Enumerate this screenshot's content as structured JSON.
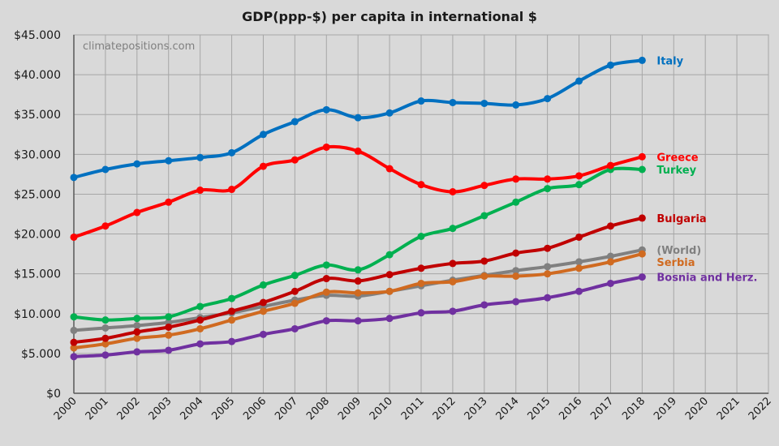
{
  "chart_data": {
    "type": "line",
    "title": "GDP(ppp-$) per capita in international $",
    "watermark": "climatepositions.com",
    "xlabel": "",
    "ylabel": "",
    "x": [
      2000,
      2001,
      2002,
      2003,
      2004,
      2005,
      2006,
      2007,
      2008,
      2009,
      2010,
      2011,
      2012,
      2013,
      2014,
      2015,
      2016,
      2017,
      2018
    ],
    "x_ticks": [
      "2000",
      "2001",
      "2002",
      "2003",
      "2004",
      "2005",
      "2006",
      "2007",
      "2008",
      "2009",
      "2010",
      "2011",
      "2012",
      "2013",
      "2014",
      "2015",
      "2016",
      "2017",
      "2018",
      "2019",
      "2020",
      "2021",
      "2022"
    ],
    "xlim": [
      2000,
      2022
    ],
    "ylim": [
      0,
      45000
    ],
    "y_ticks": [
      0,
      5000,
      10000,
      15000,
      20000,
      25000,
      30000,
      35000,
      40000,
      45000
    ],
    "y_tick_labels": [
      "$0",
      "$5.000",
      "$10.000",
      "$15.000",
      "$20.000",
      "$25.000",
      "$30.000",
      "$35.000",
      "$40.000",
      "$45.000"
    ],
    "grid": true,
    "legend": "direct labels at right end of lines",
    "series": [
      {
        "name": "Italy",
        "color": "#0070c0",
        "values": [
          27100,
          28100,
          28800,
          29200,
          29600,
          30200,
          32500,
          34100,
          35600,
          34600,
          35200,
          36700,
          36500,
          36400,
          36200,
          37000,
          39200,
          41200,
          41800
        ]
      },
      {
        "name": "Greece",
        "color": "#ff0000",
        "values": [
          19600,
          21000,
          22700,
          24000,
          25500,
          25600,
          28500,
          29300,
          30900,
          30400,
          28200,
          26200,
          25300,
          26100,
          26900,
          26900,
          27300,
          28600,
          29700
        ]
      },
      {
        "name": "Turkey",
        "color": "#00b050",
        "values": [
          9600,
          9200,
          9400,
          9600,
          10900,
          11900,
          13600,
          14800,
          16100,
          15500,
          17400,
          19700,
          20700,
          22300,
          24000,
          25700,
          26200,
          28100,
          28100
        ]
      },
      {
        "name": "Bulgaria",
        "color": "#c00000",
        "values": [
          6400,
          6900,
          7700,
          8300,
          9200,
          10300,
          11400,
          12800,
          14400,
          14100,
          14900,
          15700,
          16300,
          16600,
          17600,
          18200,
          19600,
          21000,
          22000
        ]
      },
      {
        "name": "(World)",
        "color": "#808080",
        "values": [
          7900,
          8200,
          8500,
          8900,
          9500,
          10100,
          10900,
          11700,
          12300,
          12200,
          12800,
          13500,
          14200,
          14800,
          15400,
          15900,
          16500,
          17200,
          18000
        ]
      },
      {
        "name": "Serbia",
        "color": "#d06a20",
        "values": [
          5700,
          6200,
          6900,
          7300,
          8100,
          9200,
          10300,
          11300,
          12700,
          12600,
          12800,
          13800,
          14000,
          14700,
          14700,
          15000,
          15700,
          16500,
          17500
        ]
      },
      {
        "name": "Bosnia and Herz.",
        "color": "#7030a0",
        "values": [
          4600,
          4800,
          5200,
          5400,
          6200,
          6500,
          7400,
          8100,
          9100,
          9100,
          9400,
          10100,
          10300,
          11100,
          11500,
          12000,
          12800,
          13800,
          14600
        ]
      }
    ],
    "label_y_positions": [
      41800,
      29700,
      28100,
      22000,
      18000,
      16500,
      14600
    ]
  }
}
